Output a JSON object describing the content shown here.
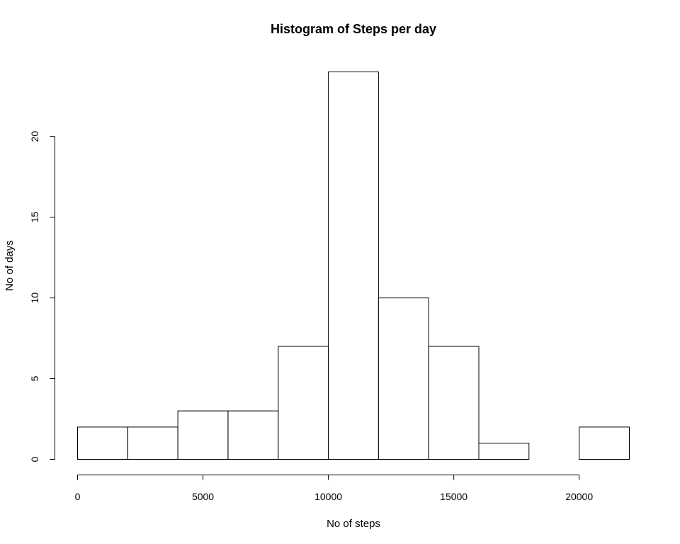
{
  "chart_data": {
    "type": "bar",
    "title": "Histogram of Steps per day",
    "xlabel": "No of steps",
    "ylabel": "No of days",
    "bins": [
      {
        "start": 0,
        "end": 2000,
        "count": 2
      },
      {
        "start": 2000,
        "end": 4000,
        "count": 2
      },
      {
        "start": 4000,
        "end": 6000,
        "count": 3
      },
      {
        "start": 6000,
        "end": 8000,
        "count": 3
      },
      {
        "start": 8000,
        "end": 10000,
        "count": 7
      },
      {
        "start": 10000,
        "end": 12000,
        "count": 24
      },
      {
        "start": 12000,
        "end": 14000,
        "count": 10
      },
      {
        "start": 14000,
        "end": 16000,
        "count": 7
      },
      {
        "start": 16000,
        "end": 18000,
        "count": 1
      },
      {
        "start": 18000,
        "end": 20000,
        "count": 0
      },
      {
        "start": 20000,
        "end": 22000,
        "count": 2
      }
    ],
    "xlim": [
      0,
      22000
    ],
    "ylim": [
      0,
      24
    ],
    "x_ticks": [
      0,
      5000,
      10000,
      15000,
      20000
    ],
    "x_tick_labels": [
      "0",
      "5000",
      "10000",
      "15000",
      "20000"
    ],
    "y_ticks": [
      0,
      5,
      10,
      15,
      20
    ],
    "y_tick_labels": [
      "0",
      "5",
      "10",
      "15",
      "20"
    ],
    "grid": false,
    "legend": "none",
    "bar_fill": "#ffffff",
    "bar_stroke": "#000000"
  }
}
